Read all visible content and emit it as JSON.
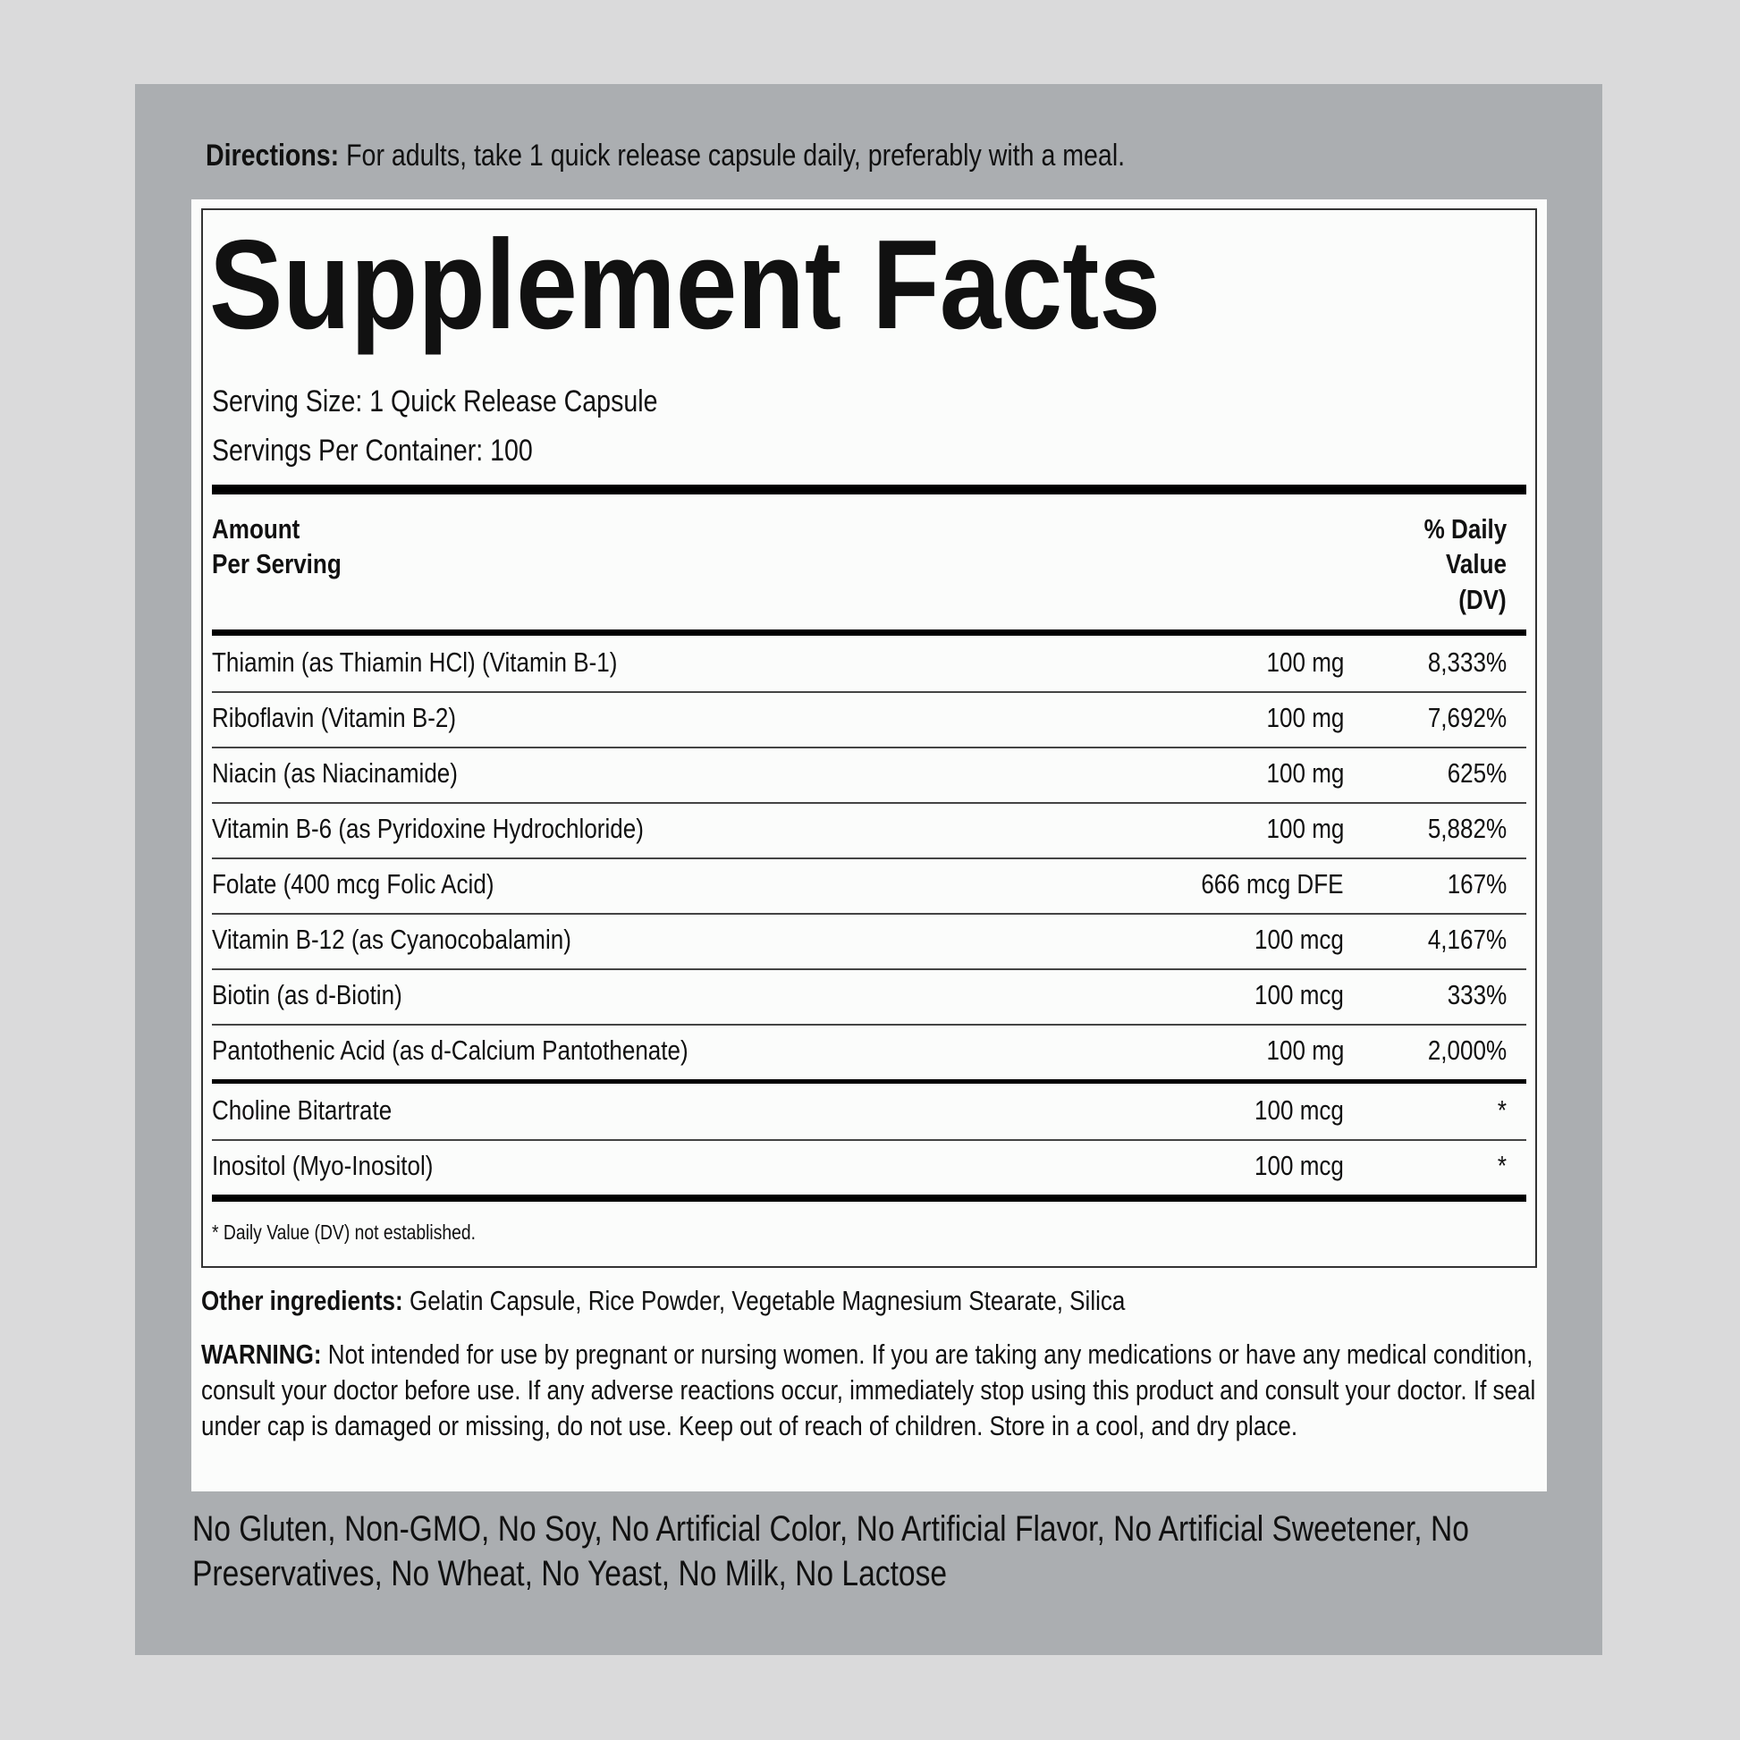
{
  "directions": {
    "label": "Directions:",
    "text": " For adults, take 1 quick release capsule daily, preferably with a meal."
  },
  "title": "Supplement Facts",
  "serving_size": "Serving Size: 1 Quick Release Capsule",
  "servings_per_container": "Servings Per Container: 100",
  "header": {
    "amount_line1": "Amount",
    "amount_line2": "Per Serving",
    "dv_line1": "% Daily",
    "dv_line2": "Value",
    "dv_line3": "(DV)"
  },
  "rows": [
    {
      "name": "Thiamin (as Thiamin HCl) (Vitamin B-1)",
      "amount": "100 mg",
      "dv": "8,333%"
    },
    {
      "name": "Riboflavin (Vitamin B-2)",
      "amount": "100 mg",
      "dv": "7,692%"
    },
    {
      "name": "Niacin (as Niacinamide)",
      "amount": "100 mg",
      "dv": "625%"
    },
    {
      "name": "Vitamin B-6 (as Pyridoxine Hydrochloride)",
      "amount": "100 mg",
      "dv": "5,882%"
    },
    {
      "name": "Folate (400 mcg Folic Acid)",
      "amount": "666 mcg DFE",
      "dv": "167%"
    },
    {
      "name": "Vitamin B-12 (as Cyanocobalamin)",
      "amount": "100 mcg",
      "dv": "4,167%"
    },
    {
      "name": "Biotin (as d-Biotin)",
      "amount": "100 mcg",
      "dv": "333%"
    },
    {
      "name": "Pantothenic Acid (as d-Calcium Pantothenate)",
      "amount": "100 mg",
      "dv": "2,000%"
    },
    {
      "name": "Choline Bitartrate",
      "amount": "100 mcg",
      "dv": "*"
    },
    {
      "name": "Inositol (Myo-Inositol)",
      "amount": "100 mcg",
      "dv": "*"
    }
  ],
  "footnote": "* Daily Value (DV) not established.",
  "other_ingredients": {
    "label": "Other ingredients:",
    "text": " Gelatin Capsule, Rice Powder, Vegetable Magnesium Stearate, Silica"
  },
  "warning": {
    "label": "WARNING:",
    "text": " Not intended for use by pregnant or nursing women. If you are taking any medications or have any medical condition, consult your doctor before use. If any adverse reactions occur, immediately stop using this product and consult your doctor. If seal under cap is damaged or missing, do not use. Keep out of reach of children. Store in a cool, and dry place."
  },
  "free_from": "No Gluten, Non-GMO, No Soy, No Artificial Color, No Artificial Flavor, No Artificial Sweetener, No Preservatives, No Wheat, No Yeast, No Milk, No Lactose"
}
